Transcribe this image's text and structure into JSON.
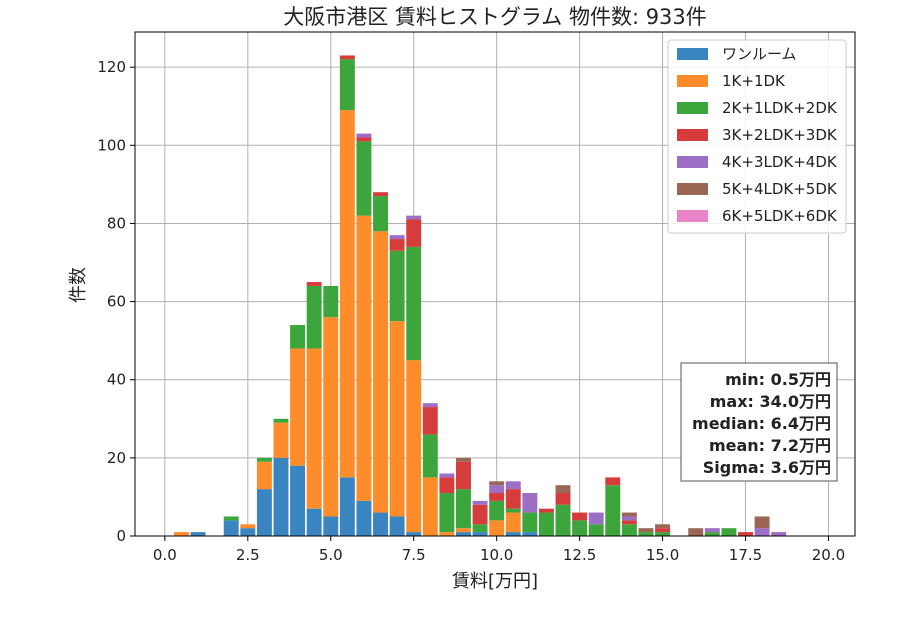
{
  "chart_data": {
    "type": "bar",
    "stacked": true,
    "title": "大阪市港区 賃料ヒストグラム  物件数: 933件",
    "xlabel": "賃料[万円]",
    "ylabel": "件数",
    "xlim": [
      -0.9,
      20.8
    ],
    "ylim": [
      0,
      129
    ],
    "x_ticks": [
      "0.0",
      "2.5",
      "5.0",
      "7.5",
      "10.0",
      "12.5",
      "15.0",
      "17.5",
      "20.0"
    ],
    "x_tick_values": [
      0,
      2.5,
      5,
      7.5,
      10,
      12.5,
      15,
      17.5,
      20
    ],
    "y_ticks": [
      "0",
      "20",
      "40",
      "60",
      "80",
      "100",
      "120"
    ],
    "y_tick_values": [
      0,
      20,
      40,
      60,
      80,
      100,
      120
    ],
    "grid": true,
    "legend_position": "top-right",
    "bin_width": 0.5,
    "bins": [
      0.5,
      1.0,
      2.0,
      2.5,
      3.0,
      3.5,
      4.0,
      4.5,
      5.0,
      5.5,
      6.0,
      6.5,
      7.0,
      7.5,
      8.0,
      8.5,
      9.0,
      9.5,
      10.0,
      10.5,
      11.0,
      11.5,
      12.0,
      12.5,
      13.0,
      13.5,
      14.0,
      14.5,
      15.0,
      16.0,
      16.5,
      17.0,
      17.5,
      18.0,
      18.5
    ],
    "series": [
      {
        "name": "ワンルーム",
        "color": "#3a85c0",
        "values": [
          0,
          1,
          4,
          2,
          12,
          20,
          18,
          7,
          5,
          15,
          9,
          6,
          5,
          1,
          0,
          0,
          1,
          1,
          0,
          1,
          1,
          0,
          0,
          0,
          0,
          0,
          0,
          0,
          0,
          0,
          0,
          0,
          0,
          0,
          0
        ]
      },
      {
        "name": "1K+1DK",
        "color": "#ff8c2a",
        "values": [
          1,
          0,
          0,
          1,
          7,
          9,
          30,
          41,
          51,
          94,
          73,
          72,
          50,
          44,
          15,
          1,
          1,
          0,
          4,
          5,
          0,
          0,
          0,
          0,
          0,
          0,
          0,
          0,
          0,
          0,
          0,
          0,
          0,
          0,
          0
        ]
      },
      {
        "name": "2K+1LDK+2DK",
        "color": "#3ca63c",
        "values": [
          0,
          0,
          1,
          0,
          1,
          1,
          6,
          16,
          8,
          13,
          19,
          9,
          18,
          29,
          11,
          10,
          10,
          2,
          5,
          1,
          5,
          6,
          8,
          4,
          3,
          13,
          3,
          1,
          1,
          0,
          1,
          2,
          0,
          0,
          0
        ]
      },
      {
        "name": "3K+2LDK+3DK",
        "color": "#d63c3c",
        "values": [
          0,
          0,
          0,
          0,
          0,
          0,
          0,
          1,
          0,
          1,
          1,
          1,
          3,
          7,
          7,
          4,
          7,
          5,
          2,
          5,
          0,
          1,
          3,
          2,
          0,
          2,
          1,
          0,
          1,
          0,
          0,
          0,
          1,
          0,
          0
        ]
      },
      {
        "name": "4K+3LDK+4DK",
        "color": "#9c6ec6",
        "values": [
          0,
          0,
          0,
          0,
          0,
          0,
          0,
          0,
          0,
          0,
          1,
          0,
          1,
          1,
          1,
          1,
          0,
          1,
          2,
          2,
          5,
          0,
          0,
          0,
          3,
          0,
          1,
          0,
          0,
          0,
          1,
          0,
          0,
          2,
          1
        ]
      },
      {
        "name": "5K+4LDK+5DK",
        "color": "#9b6656",
        "values": [
          0,
          0,
          0,
          0,
          0,
          0,
          0,
          0,
          0,
          0,
          0,
          0,
          0,
          0,
          0,
          0,
          1,
          0,
          1,
          0,
          0,
          0,
          2,
          0,
          0,
          0,
          1,
          1,
          1,
          2,
          0,
          0,
          0,
          3,
          0
        ]
      },
      {
        "name": "6K+5LDK+6DK",
        "color": "#e885c9",
        "values": [
          0,
          0,
          0,
          0,
          0,
          0,
          0,
          0,
          0,
          0,
          0,
          0,
          0,
          0,
          0,
          0,
          0,
          0,
          0,
          0,
          0,
          0,
          0,
          0,
          0,
          0,
          0,
          0,
          0,
          0,
          0,
          0,
          0,
          0,
          0
        ]
      }
    ],
    "stats": [
      "min: 0.5万円",
      "max: 34.0万円",
      "median: 6.4万円",
      "mean: 7.2万円",
      "Sigma: 3.6万円"
    ]
  }
}
